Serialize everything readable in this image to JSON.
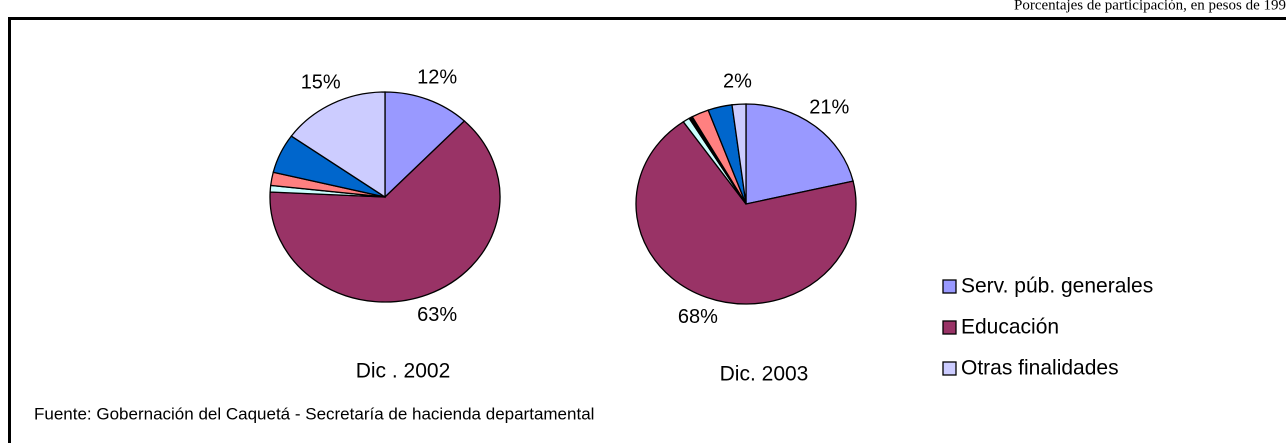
{
  "subtitle": "Porcentajes de participación, en pesos de 199",
  "note": "Fuente: Gobernación del Caquetá - Secretaría de hacienda departamental",
  "chart_data": [
    {
      "type": "pie",
      "title": "Dic . 2002",
      "categories": [
        "Serv. púb. generales",
        "Educación",
        null,
        null,
        null,
        "Otras finalidades"
      ],
      "values": [
        12,
        63,
        1,
        2,
        6,
        15
      ],
      "value_labels": [
        "12%",
        "63%",
        null,
        null,
        null,
        "15%"
      ],
      "colors": [
        "#9999ff",
        "#993366",
        "#ccffff",
        "#ff8080",
        "#0066cc",
        "#ccccff"
      ]
    },
    {
      "type": "pie",
      "title": "Dic. 2003",
      "categories": [
        "Serv. púb. generales",
        "Educación",
        null,
        null,
        null,
        null,
        "Otras finalidades"
      ],
      "values": [
        21,
        68,
        1,
        0.5,
        2.5,
        3.5,
        2
      ],
      "value_labels": [
        "21%",
        "68%",
        null,
        null,
        null,
        null,
        "2%"
      ],
      "colors": [
        "#9999ff",
        "#993366",
        "#ccffff",
        "#000000",
        "#ff8080",
        "#0066cc",
        "#ccccff"
      ]
    }
  ]
}
